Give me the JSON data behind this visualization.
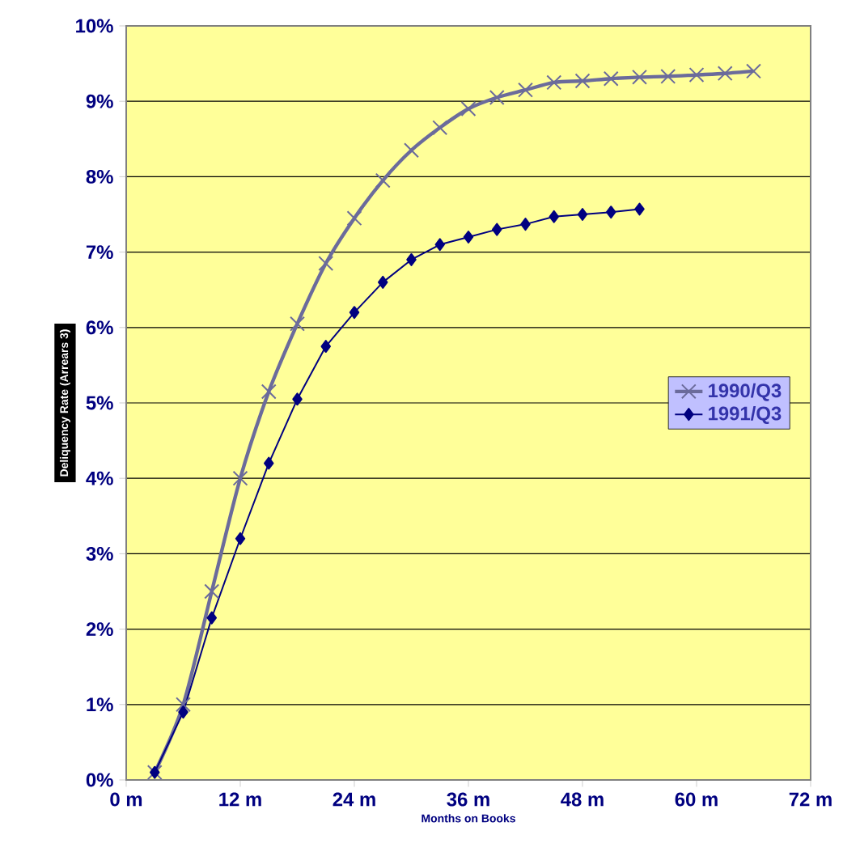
{
  "chart_data": {
    "type": "line",
    "xlabel": "Months on Books",
    "ylabel": "Deliquency Rate (Arrears 3)",
    "xlim": [
      0,
      72
    ],
    "xticks": [
      {
        "value": 0,
        "label": "0 m"
      },
      {
        "value": 12,
        "label": "12 m"
      },
      {
        "value": 24,
        "label": "24 m"
      },
      {
        "value": 36,
        "label": "36 m"
      },
      {
        "value": 48,
        "label": "48 m"
      },
      {
        "value": 60,
        "label": "60 m"
      },
      {
        "value": 72,
        "label": "72 m"
      }
    ],
    "ylim": [
      0,
      10
    ],
    "yticks": [
      {
        "value": 0,
        "label": "0%"
      },
      {
        "value": 1,
        "label": "1%"
      },
      {
        "value": 2,
        "label": "2%"
      },
      {
        "value": 3,
        "label": "3%"
      },
      {
        "value": 4,
        "label": "4%"
      },
      {
        "value": 5,
        "label": "5%"
      },
      {
        "value": 6,
        "label": "6%"
      },
      {
        "value": 7,
        "label": "7%"
      },
      {
        "value": 8,
        "label": "8%"
      },
      {
        "value": 9,
        "label": "9%"
      },
      {
        "value": 10,
        "label": "10%"
      }
    ],
    "grid": "y",
    "legend": "right",
    "series": [
      {
        "name": "1990/Q3",
        "color": "#6b6b9b",
        "marker": "cross",
        "x": [
          3,
          6,
          9,
          12,
          15,
          18,
          21,
          24,
          27,
          30,
          33,
          36,
          39,
          42,
          45,
          48,
          51,
          54,
          57,
          60,
          63,
          66
        ],
        "values": [
          0.1,
          1.0,
          2.5,
          4.0,
          5.15,
          6.05,
          6.85,
          7.45,
          7.95,
          8.35,
          8.65,
          8.9,
          9.05,
          9.15,
          9.25,
          9.27,
          9.3,
          9.32,
          9.33,
          9.35,
          9.37,
          9.4
        ]
      },
      {
        "name": "1991/Q3",
        "color": "#000080",
        "marker": "diamond",
        "x": [
          3,
          6,
          9,
          12,
          15,
          18,
          21,
          24,
          27,
          30,
          33,
          36,
          39,
          42,
          45,
          48,
          51,
          54
        ],
        "values": [
          0.1,
          0.9,
          2.15,
          3.2,
          4.2,
          5.05,
          5.75,
          6.2,
          6.6,
          6.9,
          7.1,
          7.2,
          7.3,
          7.37,
          7.47,
          7.5,
          7.53,
          7.57
        ]
      }
    ]
  }
}
